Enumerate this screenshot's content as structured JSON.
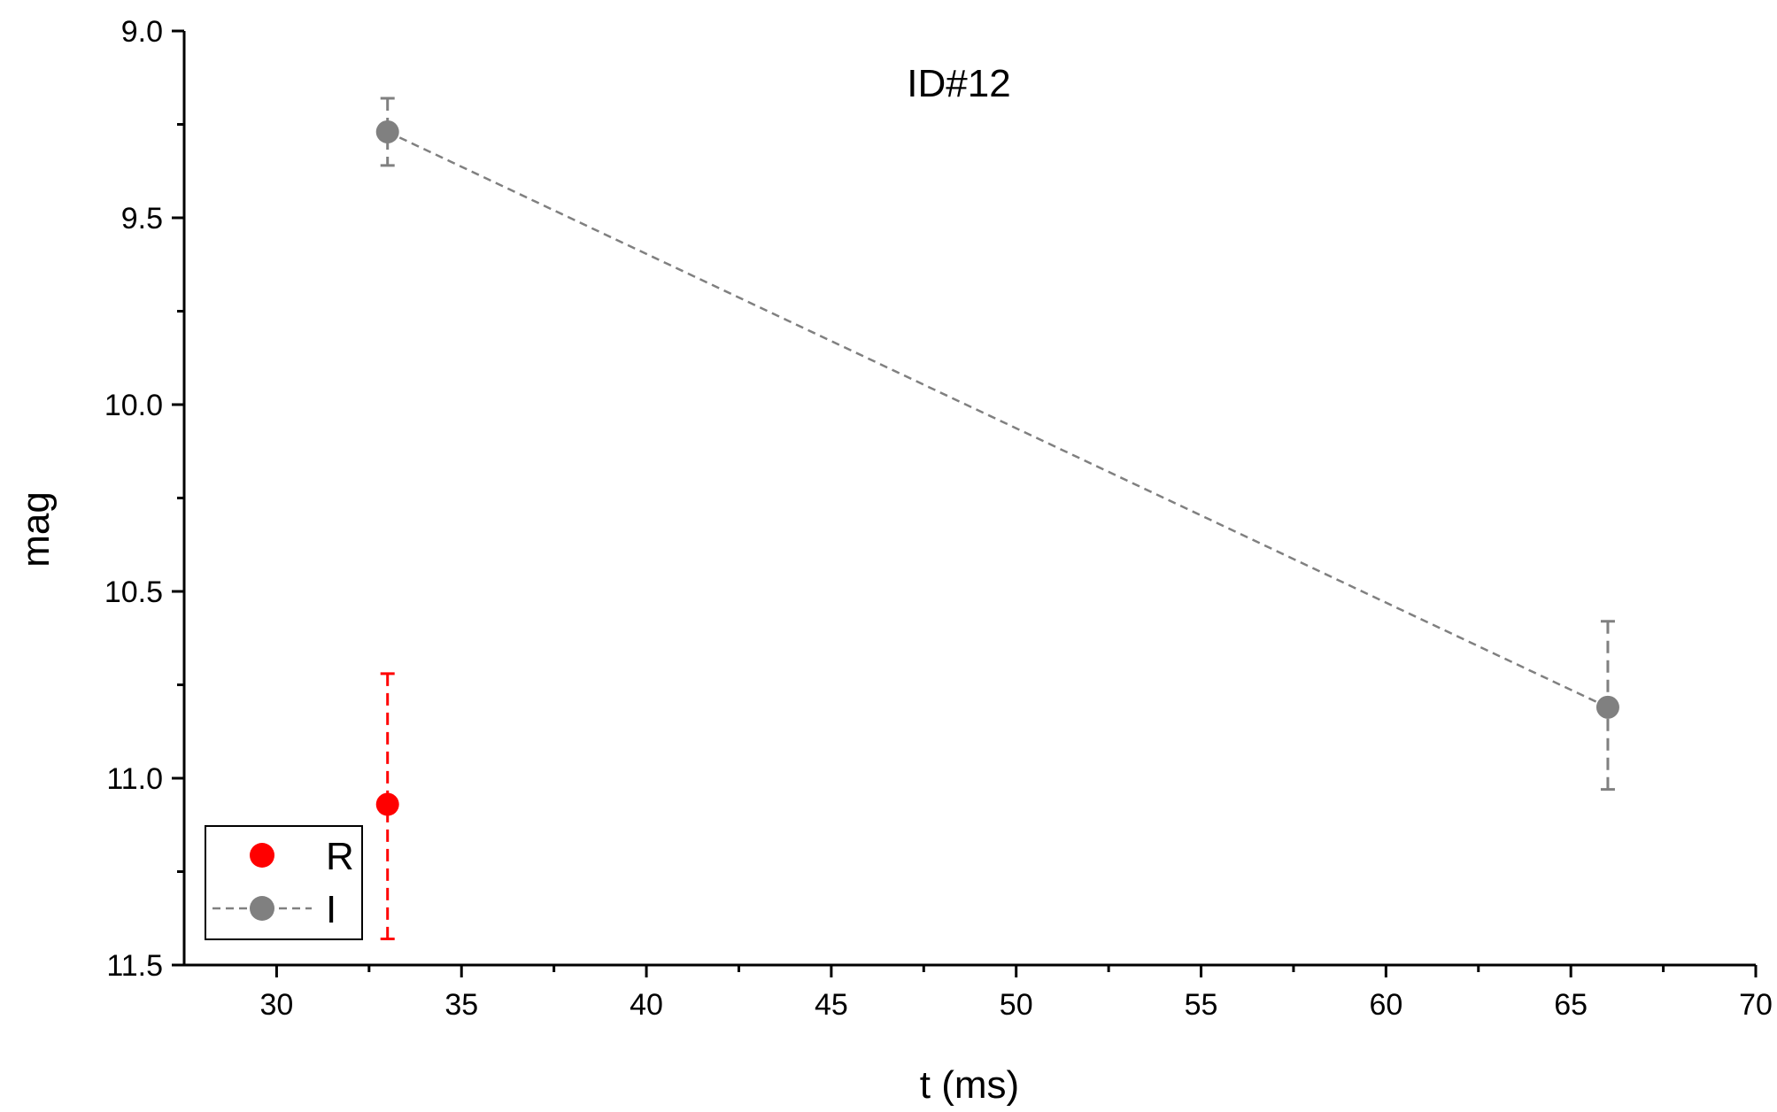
{
  "chart_data": {
    "type": "scatter",
    "annotation": "ID#12",
    "xlabel": "t (ms)",
    "ylabel": "mag",
    "xlim": [
      27.5,
      70
    ],
    "ylim": [
      9.0,
      11.5
    ],
    "y_inverted": true,
    "x_ticks": [
      "30",
      "35",
      "40",
      "45",
      "50",
      "55",
      "60",
      "65",
      "70"
    ],
    "y_ticks": [
      "9.0",
      "9.5",
      "10.0",
      "10.5",
      "11.0",
      "11.5"
    ],
    "grid": false,
    "legend_position": "bottom-left",
    "series": [
      {
        "name": "R",
        "color": "#ff0000",
        "line": "none",
        "errorbar_style": "dashed",
        "points": [
          {
            "x": 33,
            "y": 11.07,
            "err_low": 10.72,
            "err_high": 11.43
          }
        ]
      },
      {
        "name": "I",
        "color": "#808080",
        "line": "dashed",
        "errorbar_style": "dashed",
        "points": [
          {
            "x": 33,
            "y": 9.27,
            "err_low": 9.18,
            "err_high": 9.36
          },
          {
            "x": 66,
            "y": 10.81,
            "err_low": 10.58,
            "err_high": 11.03
          }
        ]
      }
    ]
  }
}
